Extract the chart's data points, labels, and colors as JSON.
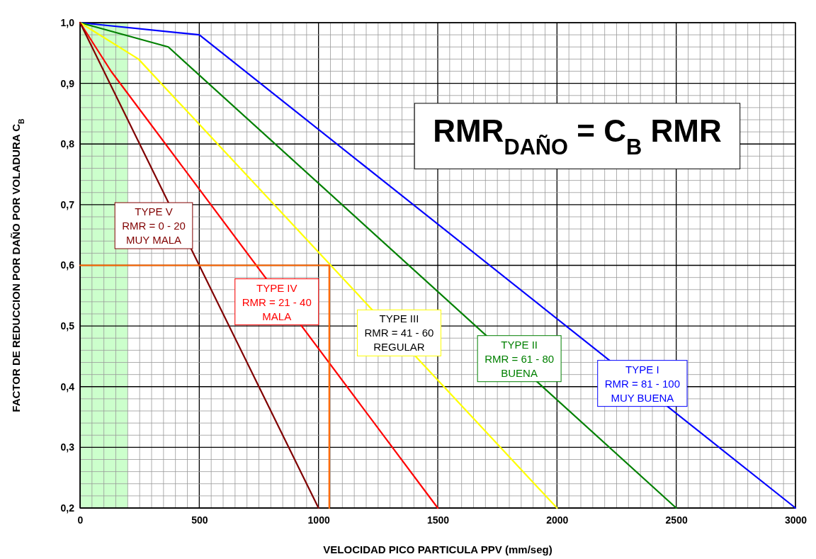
{
  "chart_data": {
    "type": "line",
    "xlabel": "VELOCIDAD PICO PARTICULA PPV (mm/seg)",
    "ylabel": "FACTOR DE REDUCCION POR DAÑO POR VOLADURA C$_{B}$",
    "xlim": [
      0,
      3000
    ],
    "ylim": [
      0.2,
      1.0
    ],
    "xticks": [
      0,
      {
        "value": 50,
        "label": null
      },
      {
        "value": 100,
        "label": null
      },
      {
        "value": 150,
        "label": null
      },
      {
        "value": 200,
        "label": null
      },
      {
        "value": 250,
        "label": null
      },
      {
        "value": 300,
        "label": null
      },
      {
        "value": 350,
        "label": null
      },
      {
        "value": 400,
        "label": null
      },
      {
        "value": 450,
        "label": null
      },
      500,
      {
        "value": 550,
        "label": null
      },
      {
        "value": 600,
        "label": null
      },
      {
        "value": 650,
        "label": null
      },
      {
        "value": 700,
        "label": null
      },
      {
        "value": 750,
        "label": null
      },
      {
        "value": 800,
        "label": null
      },
      {
        "value": 850,
        "label": null
      },
      {
        "value": 900,
        "label": null
      },
      {
        "value": 950,
        "label": null
      },
      1000,
      {
        "value": 1050,
        "label": null
      },
      {
        "value": 1100,
        "label": null
      },
      {
        "value": 1150,
        "label": null
      },
      {
        "value": 1200,
        "label": null
      },
      {
        "value": 1250,
        "label": null
      },
      {
        "value": 1300,
        "label": null
      },
      {
        "value": 1350,
        "label": null
      },
      {
        "value": 1400,
        "label": null
      },
      {
        "value": 1450,
        "label": null
      },
      1500,
      {
        "value": 1550,
        "label": null
      },
      {
        "value": 1600,
        "label": null
      },
      {
        "value": 1650,
        "label": null
      },
      {
        "value": 1700,
        "label": null
      },
      {
        "value": 1750,
        "label": null
      },
      {
        "value": 1800,
        "label": null
      },
      {
        "value": 1850,
        "label": null
      },
      {
        "value": 1900,
        "label": null
      },
      {
        "value": 1950,
        "label": null
      },
      2000,
      {
        "value": 2050,
        "label": null
      },
      {
        "value": 2100,
        "label": null
      },
      {
        "value": 2150,
        "label": null
      },
      {
        "value": 2200,
        "label": null
      },
      {
        "value": 2250,
        "label": null
      },
      {
        "value": 2300,
        "label": null
      },
      {
        "value": 2350,
        "label": null
      },
      {
        "value": 2400,
        "label": null
      },
      {
        "value": 2450,
        "label": null
      },
      2500,
      {
        "value": 2550,
        "label": null
      },
      {
        "value": 2600,
        "label": null
      },
      {
        "value": 2650,
        "label": null
      },
      {
        "value": 2700,
        "label": null
      },
      {
        "value": 2750,
        "label": null
      },
      {
        "value": 2800,
        "label": null
      },
      {
        "value": 2850,
        "label": null
      },
      {
        "value": 2900,
        "label": null
      },
      {
        "value": 2950,
        "label": null
      },
      3000
    ],
    "yticks": [
      {
        "value": 0.2,
        "label": "0,2"
      },
      {
        "value": 0.22,
        "label": null
      },
      {
        "value": 0.24,
        "label": null
      },
      {
        "value": 0.26,
        "label": null
      },
      {
        "value": 0.28,
        "label": null
      },
      {
        "value": 0.3,
        "label": "0,3"
      },
      {
        "value": 0.32,
        "label": null
      },
      {
        "value": 0.34,
        "label": null
      },
      {
        "value": 0.36,
        "label": null
      },
      {
        "value": 0.38,
        "label": null
      },
      {
        "value": 0.4,
        "label": "0,4"
      },
      {
        "value": 0.42,
        "label": null
      },
      {
        "value": 0.44,
        "label": null
      },
      {
        "value": 0.46,
        "label": null
      },
      {
        "value": 0.48,
        "label": null
      },
      {
        "value": 0.5,
        "label": "0,5"
      },
      {
        "value": 0.52,
        "label": null
      },
      {
        "value": 0.54,
        "label": null
      },
      {
        "value": 0.56,
        "label": null
      },
      {
        "value": 0.58,
        "label": null
      },
      {
        "value": 0.6,
        "label": "0,6"
      },
      {
        "value": 0.62,
        "label": null
      },
      {
        "value": 0.64,
        "label": null
      },
      {
        "value": 0.66,
        "label": null
      },
      {
        "value": 0.68,
        "label": null
      },
      {
        "value": 0.7,
        "label": "0,7"
      },
      {
        "value": 0.72,
        "label": null
      },
      {
        "value": 0.74,
        "label": null
      },
      {
        "value": 0.76,
        "label": null
      },
      {
        "value": 0.78,
        "label": null
      },
      {
        "value": 0.8,
        "label": "0,8"
      },
      {
        "value": 0.82,
        "label": null
      },
      {
        "value": 0.84,
        "label": null
      },
      {
        "value": 0.86,
        "label": null
      },
      {
        "value": 0.88,
        "label": null
      },
      {
        "value": 0.9,
        "label": "0,9"
      },
      {
        "value": 0.92,
        "label": null
      },
      {
        "value": 0.94,
        "label": null
      },
      {
        "value": 0.96,
        "label": null
      },
      {
        "value": 0.98,
        "label": null
      },
      {
        "value": 1.0,
        "label": "1,0"
      }
    ],
    "grid": true,
    "bands": [
      {
        "axis": "x",
        "from": 0,
        "to": 200,
        "color": "#ccffcc"
      }
    ],
    "series": [
      {
        "color": "#0000ff",
        "x": [
          0,
          500,
          3000
        ],
        "values": [
          1.0,
          0.98,
          0.2
        ]
      },
      {
        "color": "#008000",
        "x": [
          0,
          370,
          2500
        ],
        "values": [
          1.0,
          0.96,
          0.2
        ]
      },
      {
        "color": "#ffff00",
        "x": [
          0,
          245,
          2000
        ],
        "values": [
          1.0,
          0.94,
          0.2
        ]
      },
      {
        "color": "#ff0000",
        "x": [
          0,
          130,
          1500
        ],
        "values": [
          1.0,
          0.92,
          0.2
        ]
      },
      {
        "color": "#800000",
        "x": [
          0,
          1000
        ],
        "values": [
          1.0,
          0.2
        ]
      },
      {
        "color": "#ff6600",
        "x": [
          0,
          1045,
          1045
        ],
        "values": [
          0.6,
          0.6,
          0.2
        ]
      }
    ],
    "annotations": [
      "RMR$_{DAÑO}$ = C$_{B}$ RMR",
      "TYPE I\nRMR = 81 - 100\nMUY BUENA",
      "TYPE II\nRMR = 61 - 80\nBUENA",
      "TYPE III\nRMR = 41 - 60\nREGULAR",
      "TYPE IV\nRMR = 21 - 40\nMALA",
      "TYPE V\nRMR = 0 - 20\nMUY MALA"
    ]
  }
}
